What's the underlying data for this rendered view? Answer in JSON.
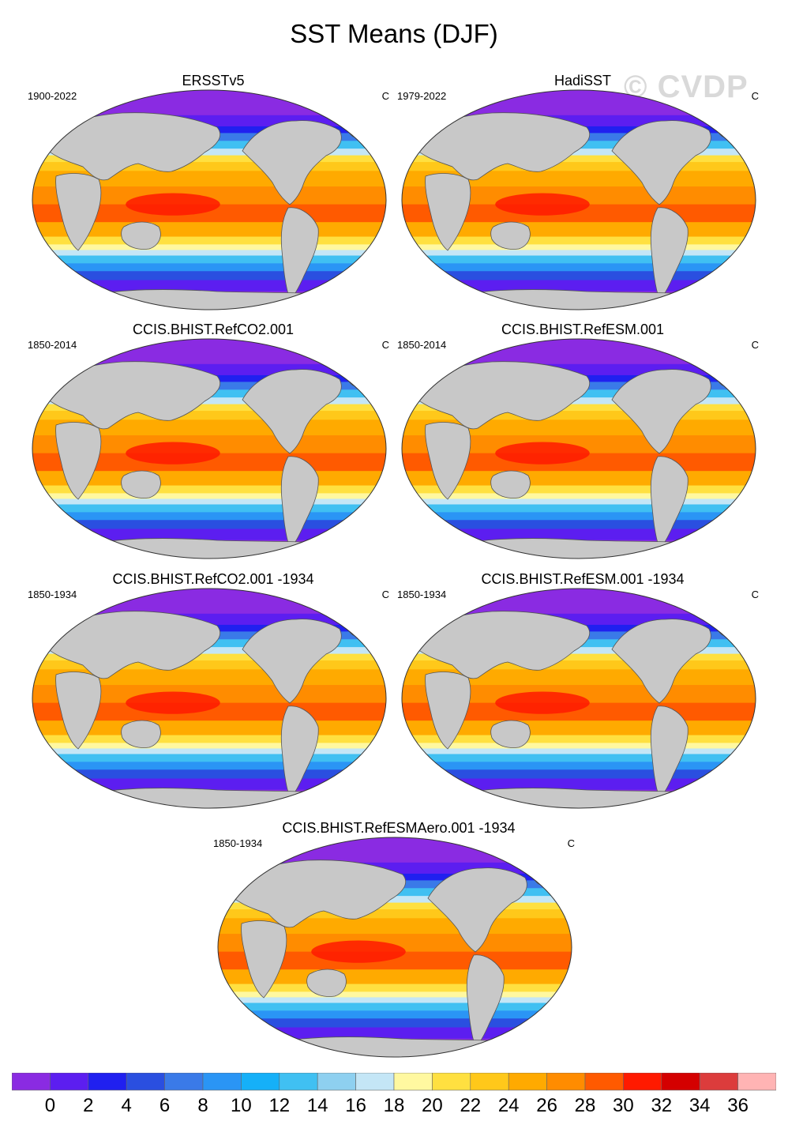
{
  "figure": {
    "title": "SST Means (DJF)",
    "watermark": "© CVDP"
  },
  "colors": {
    "land": "#c8c8c8",
    "outline": "#555555"
  },
  "chart_data": [
    {
      "type": "heatmap",
      "title": "ERSSTv5",
      "period": "1900-2022",
      "unit": "C"
    },
    {
      "type": "heatmap",
      "title": "HadiSST",
      "period": "1979-2022",
      "unit": "C"
    },
    {
      "type": "heatmap",
      "title": "CCIS.BHIST.RefCO2.001",
      "period": "1850-2014",
      "unit": "C"
    },
    {
      "type": "heatmap",
      "title": "CCIS.BHIST.RefESM.001",
      "period": "1850-2014",
      "unit": "C"
    },
    {
      "type": "heatmap",
      "title": "CCIS.BHIST.RefCO2.001 -1934",
      "period": "1850-1934",
      "unit": "C"
    },
    {
      "type": "heatmap",
      "title": "CCIS.BHIST.RefESM.001 -1934",
      "period": "1850-1934",
      "unit": "C"
    },
    {
      "type": "heatmap",
      "title": "CCIS.BHIST.RefESMAero.001 -1934",
      "period": "1850-1934",
      "unit": "C"
    }
  ],
  "colorbar": {
    "labels": [
      "0",
      "2",
      "4",
      "6",
      "8",
      "10",
      "12",
      "14",
      "16",
      "18",
      "20",
      "22",
      "24",
      "26",
      "28",
      "30",
      "32",
      "34",
      "36"
    ],
    "colors": [
      "#8a2be2",
      "#5c1ef0",
      "#2020f0",
      "#2a4fe0",
      "#3a7ae8",
      "#2a95f5",
      "#15b0f8",
      "#40c0f2",
      "#8ed0f0",
      "#c4e6f6",
      "#fff8a0",
      "#ffe040",
      "#ffc81a",
      "#ffaa00",
      "#ff8c00",
      "#ff5a00",
      "#ff1a00",
      "#d40000",
      "#dc3c3c",
      "#ffb4b4"
    ]
  }
}
